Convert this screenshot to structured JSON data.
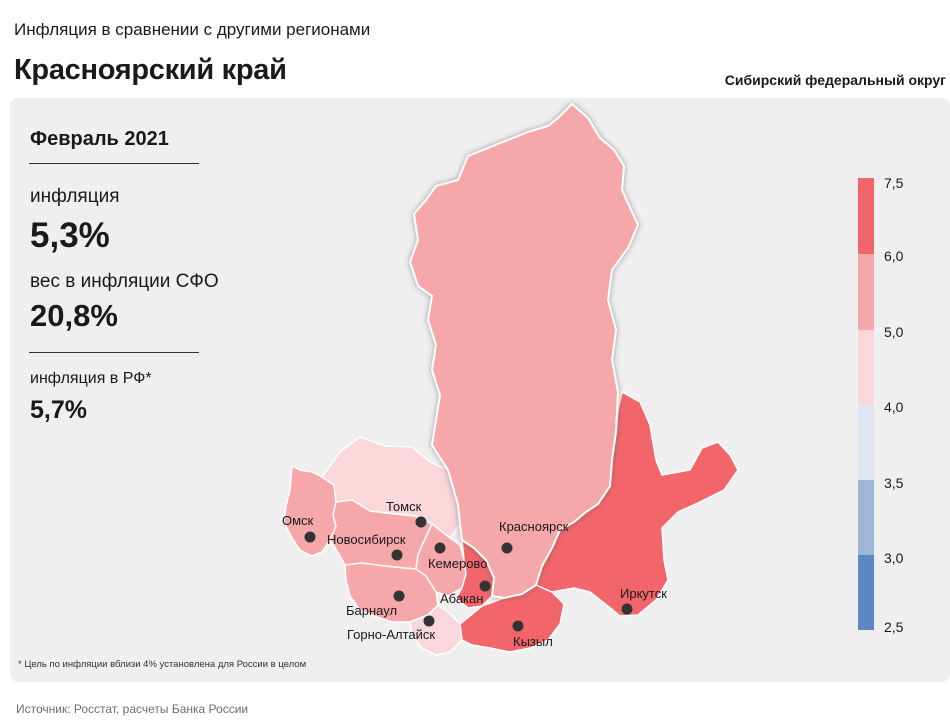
{
  "header": {
    "subtitle": "Инфляция в сравнении с другими регионами",
    "title": "Красноярский край",
    "district": "Сибирский федеральный округ"
  },
  "stats": {
    "period": "Февраль 2021",
    "inflation_label": "инфляция",
    "inflation_value": "5,3%",
    "weight_label": "вес в инфляции СФО",
    "weight_value": "20,8%",
    "rf_label": "инфляция в РФ*",
    "rf_value": "5,7%"
  },
  "footnote": "* Цель по инфляции вблизи 4% установлена для России в целом",
  "source": "Источник: Росстат, расчеты Банка России",
  "colors": {
    "selected_region": "#f5a7aa",
    "band_5_6": "#f5a7aa",
    "band_6_75": "#f2666b",
    "band_4_5": "#f9d7da",
    "band_35_4": "#dfe5f3",
    "band_3_35": "#9fb6d9",
    "band_25_3": "#5d86c3",
    "panel": "#efefef"
  },
  "legend": {
    "ticks": [
      "7,5",
      "6,0",
      "5,0",
      "4,0",
      "3,5",
      "3,0",
      "2,5"
    ]
  },
  "cities": [
    {
      "name": "Омск",
      "marker": true
    },
    {
      "name": "Томск",
      "marker": true
    },
    {
      "name": "Новосибирск",
      "marker": true
    },
    {
      "name": "Кемерово",
      "marker": true
    },
    {
      "name": "Красноярск",
      "marker": true
    },
    {
      "name": "Абакан",
      "marker": true
    },
    {
      "name": "Барнаул",
      "marker": true
    },
    {
      "name": "Горно-Алтайск",
      "marker": true
    },
    {
      "name": "Кызыл",
      "marker": true
    },
    {
      "name": "Иркутск",
      "marker": true
    }
  ]
}
